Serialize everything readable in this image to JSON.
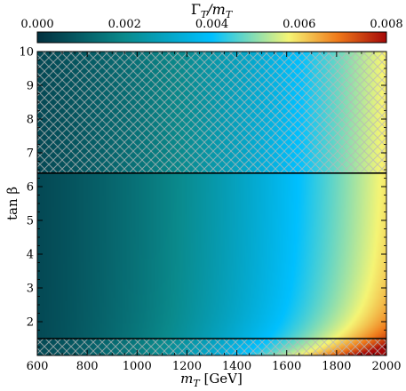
{
  "chart_data": {
    "type": "heatmap",
    "title": "",
    "colorbar": {
      "label_main": "Γ",
      "label_sub1": "T",
      "label_slash": "/m",
      "label_sub2": "T",
      "range": [
        0.0,
        0.008
      ],
      "ticks": [
        "0.000",
        "0.002",
        "0.004",
        "0.006",
        "0.008"
      ],
      "tick_values": [
        0.0,
        0.002,
        0.004,
        0.006,
        0.008
      ],
      "colors": [
        "#02303f",
        "#0a8a8c",
        "#00c0ff",
        "#f5f575",
        "#f07a1a",
        "#a50808"
      ],
      "placement": "top"
    },
    "x": {
      "label_var": "m",
      "label_sub": "T",
      "label_unit": " [GeV]",
      "range": [
        600,
        2000
      ],
      "ticks": [
        "600",
        "800",
        "1000",
        "1200",
        "1400",
        "1600",
        "1800",
        "2000"
      ],
      "tick_values": [
        600,
        800,
        1000,
        1200,
        1400,
        1600,
        1800,
        2000
      ]
    },
    "y": {
      "label": "tan β",
      "range": [
        1.0,
        10.0
      ],
      "ticks": [
        "2",
        "3",
        "4",
        "5",
        "6",
        "7",
        "8",
        "9",
        "10"
      ],
      "tick_values": [
        2,
        3,
        4,
        5,
        6,
        7,
        8,
        9,
        10
      ]
    },
    "excluded_regions": [
      {
        "name": "excluded-high-tanb",
        "y_range": [
          6.4,
          10.0
        ]
      },
      {
        "name": "excluded-low-tanb",
        "y_range": [
          1.0,
          1.5
        ]
      }
    ],
    "grid": false
  }
}
